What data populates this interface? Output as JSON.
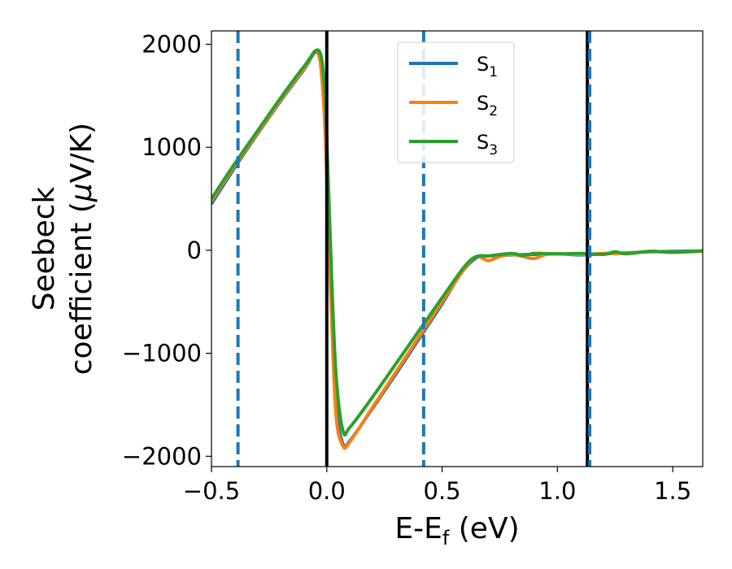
{
  "chart_data": {
    "type": "line",
    "xlabel": "E-E_f (eV)",
    "xlabel_main": "E-E",
    "xlabel_sub": "f",
    "xlabel_tail": " (eV)",
    "ylabel_line1": "Seebeck",
    "ylabel_line2_pre": "coefficient  (",
    "ylabel_line2_mu": "μ",
    "ylabel_line2_post": "V/K)",
    "xlim": [
      -0.5,
      1.63
    ],
    "ylim": [
      -2100,
      2130
    ],
    "xticks": [
      -0.5,
      0.0,
      0.5,
      1.0,
      1.5
    ],
    "xtick_labels": [
      "−0.5",
      "0.0",
      "0.5",
      "1.0",
      "1.5"
    ],
    "yticks": [
      -2000,
      -1000,
      0,
      1000,
      2000
    ],
    "ytick_labels": [
      "−2000",
      "−1000",
      "0",
      "1000",
      "2000"
    ],
    "grid": false,
    "legend_position": "top-center",
    "vlines": [
      {
        "x": -0.385,
        "style": "dashed",
        "color": "#1f77b4"
      },
      {
        "x": 0.0,
        "style": "solid",
        "color": "#000000"
      },
      {
        "x": 0.42,
        "style": "dashed",
        "color": "#1f77b4"
      },
      {
        "x": 1.13,
        "style": "solid",
        "color": "#000000"
      },
      {
        "x": 1.14,
        "style": "dashed",
        "color": "#1f77b4"
      }
    ],
    "series": [
      {
        "name_main": "S",
        "name_sub": "1",
        "color": "#1f77b4",
        "points": [
          [
            -0.5,
            450
          ],
          [
            -0.4,
            800
          ],
          [
            -0.3,
            1130
          ],
          [
            -0.2,
            1450
          ],
          [
            -0.1,
            1750
          ],
          [
            -0.04,
            1920
          ],
          [
            -0.015,
            1500
          ],
          [
            0.0,
            800
          ],
          [
            0.02,
            -500
          ],
          [
            0.04,
            -1500
          ],
          [
            0.07,
            -1880
          ],
          [
            0.1,
            -1850
          ],
          [
            0.2,
            -1530
          ],
          [
            0.3,
            -1200
          ],
          [
            0.4,
            -860
          ],
          [
            0.5,
            -520
          ],
          [
            0.58,
            -230
          ],
          [
            0.65,
            -70
          ],
          [
            0.7,
            -55
          ],
          [
            0.8,
            -45
          ],
          [
            0.9,
            -40
          ],
          [
            1.0,
            -35
          ],
          [
            1.1,
            -45
          ],
          [
            1.2,
            -35
          ],
          [
            1.3,
            -25
          ],
          [
            1.4,
            -15
          ],
          [
            1.5,
            -10
          ],
          [
            1.63,
            -8
          ]
        ]
      },
      {
        "name_main": "S",
        "name_sub": "2",
        "color": "#ff7f0e",
        "points": [
          [
            -0.5,
            480
          ],
          [
            -0.4,
            820
          ],
          [
            -0.3,
            1140
          ],
          [
            -0.2,
            1460
          ],
          [
            -0.1,
            1760
          ],
          [
            -0.04,
            1930
          ],
          [
            -0.015,
            1480
          ],
          [
            0.0,
            700
          ],
          [
            0.02,
            -600
          ],
          [
            0.04,
            -1600
          ],
          [
            0.07,
            -1900
          ],
          [
            0.1,
            -1860
          ],
          [
            0.2,
            -1520
          ],
          [
            0.3,
            -1180
          ],
          [
            0.4,
            -840
          ],
          [
            0.5,
            -500
          ],
          [
            0.6,
            -170
          ],
          [
            0.65,
            -60
          ],
          [
            0.7,
            -100
          ],
          [
            0.75,
            -60
          ],
          [
            0.8,
            -40
          ],
          [
            0.85,
            -60
          ],
          [
            0.9,
            -80
          ],
          [
            0.95,
            -40
          ],
          [
            1.0,
            -35
          ],
          [
            1.1,
            -40
          ],
          [
            1.2,
            -30
          ],
          [
            1.3,
            -30
          ],
          [
            1.4,
            -10
          ],
          [
            1.5,
            -20
          ],
          [
            1.63,
            -10
          ]
        ]
      },
      {
        "name_main": "S",
        "name_sub": "3",
        "color": "#2ca02c",
        "points": [
          [
            -0.5,
            500
          ],
          [
            -0.4,
            840
          ],
          [
            -0.3,
            1160
          ],
          [
            -0.2,
            1480
          ],
          [
            -0.1,
            1780
          ],
          [
            -0.035,
            1940
          ],
          [
            -0.01,
            1600
          ],
          [
            0.0,
            1100
          ],
          [
            0.02,
            -200
          ],
          [
            0.04,
            -1200
          ],
          [
            0.07,
            -1750
          ],
          [
            0.1,
            -1720
          ],
          [
            0.2,
            -1420
          ],
          [
            0.3,
            -1100
          ],
          [
            0.4,
            -780
          ],
          [
            0.5,
            -460
          ],
          [
            0.6,
            -150
          ],
          [
            0.65,
            -60
          ],
          [
            0.7,
            -55
          ],
          [
            0.8,
            -30
          ],
          [
            0.85,
            -50
          ],
          [
            0.9,
            -30
          ],
          [
            1.0,
            -35
          ],
          [
            1.1,
            -30
          ],
          [
            1.2,
            -40
          ],
          [
            1.25,
            -15
          ],
          [
            1.3,
            -35
          ],
          [
            1.4,
            -10
          ],
          [
            1.5,
            -20
          ],
          [
            1.63,
            -5
          ]
        ]
      }
    ]
  }
}
